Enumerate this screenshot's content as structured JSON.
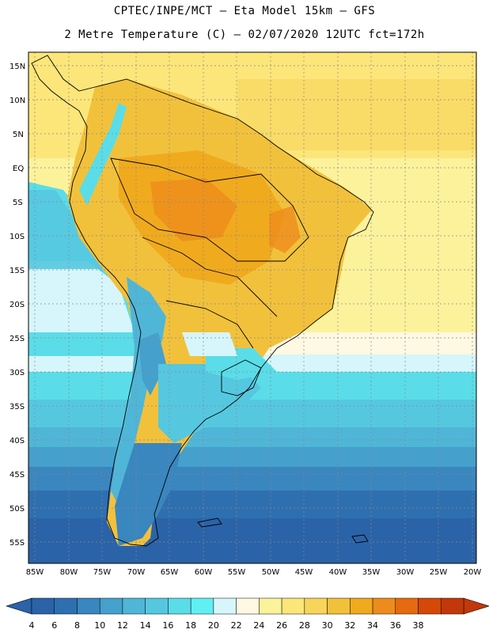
{
  "title": {
    "line1": "CPTEC/INPE/MCT –  Eta Model 15km – GFS",
    "line2": "2 Metre Temperature (C) – 02/07/2020 12UTC fct=172h"
  },
  "axes": {
    "lat_labels": [
      "15N",
      "10N",
      "5N",
      "EQ",
      "5S",
      "10S",
      "15S",
      "20S",
      "25S",
      "30S",
      "35S",
      "40S",
      "45S",
      "50S",
      "55S"
    ],
    "lon_labels": [
      "85W",
      "80W",
      "75W",
      "70W",
      "65W",
      "60W",
      "55W",
      "50W",
      "45W",
      "40W",
      "35W",
      "30W",
      "25W",
      "20W"
    ],
    "lat_range": [
      18,
      -59
    ],
    "lon_range": [
      -86,
      -19
    ]
  },
  "colorbar": {
    "labels": [
      "4",
      "6",
      "8",
      "10",
      "12",
      "14",
      "16",
      "18",
      "20",
      "22",
      "24",
      "26",
      "28",
      "30",
      "32",
      "34",
      "36",
      "38"
    ],
    "colors": [
      "#2a63a8",
      "#2e6fb0",
      "#3a86bf",
      "#45a0cc",
      "#4fb6d8",
      "#55c8e0",
      "#5adde8",
      "#60f0f4",
      "#d6f6fb",
      "#fff8e2",
      "#fdf29c",
      "#fce67a",
      "#f7d45a",
      "#f2c13c",
      "#f0aa1e",
      "#ed8c1c",
      "#e56a10",
      "#d44808",
      "#c3380a"
    ],
    "left_arrow_color": "#2a63a8",
    "right_arrow_color": "#c3380a"
  },
  "colors": {
    "frame": "#000000",
    "grid": "#888888",
    "land_outline": "#000000"
  }
}
